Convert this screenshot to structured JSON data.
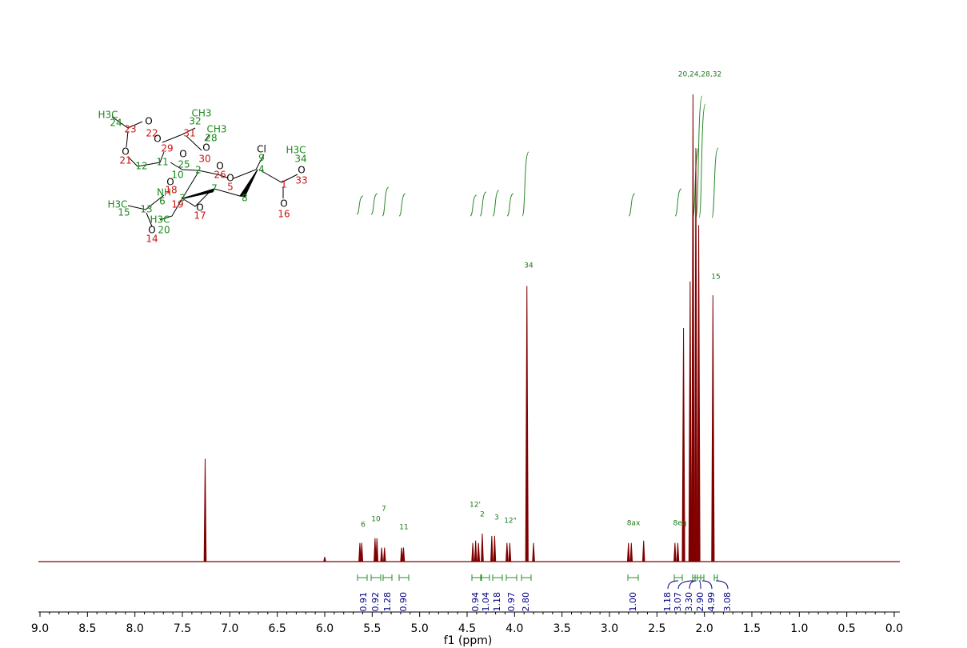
{
  "chart_data": {
    "type": "nmr",
    "x_label": "f1 (ppm)",
    "xlim": [
      9.0,
      0.0
    ],
    "xticks": [
      {
        "value": 9.0,
        "label": "9.0"
      },
      {
        "value": 8.5,
        "label": "8.5"
      },
      {
        "value": 8.0,
        "label": "8.0"
      },
      {
        "value": 7.5,
        "label": "7.5"
      },
      {
        "value": 7.0,
        "label": "7.0"
      },
      {
        "value": 6.5,
        "label": "6.5"
      },
      {
        "value": 6.0,
        "label": "6.0"
      },
      {
        "value": 5.5,
        "label": "5.5"
      },
      {
        "value": 5.0,
        "label": "5.0"
      },
      {
        "value": 4.5,
        "label": "4.5"
      },
      {
        "value": 4.0,
        "label": "4.0"
      },
      {
        "value": 3.5,
        "label": "3.5"
      },
      {
        "value": 3.0,
        "label": "3.0"
      },
      {
        "value": 2.5,
        "label": "2.5"
      },
      {
        "value": 2.0,
        "label": "2.0"
      },
      {
        "value": 1.5,
        "label": "1.5"
      },
      {
        "value": 1.0,
        "label": "1.0"
      },
      {
        "value": 0.5,
        "label": "0.5"
      },
      {
        "value": 0.0,
        "label": "0.0"
      }
    ],
    "ylim": [
      0,
      100
    ],
    "color": "#800000",
    "peaks": {
      "x": [
        7.26,
        6.0,
        5.63,
        5.61,
        5.47,
        5.45,
        5.4,
        5.37,
        5.19,
        5.17,
        4.44,
        4.41,
        4.38,
        4.34,
        4.24,
        4.21,
        4.08,
        4.05,
        3.87,
        3.8,
        2.8,
        2.77,
        2.64,
        2.31,
        2.28,
        2.22,
        2.15,
        2.12,
        2.09,
        2.06,
        1.91
      ],
      "values": [
        22,
        1,
        4,
        4,
        5,
        5,
        3,
        3,
        3,
        3,
        4,
        4.5,
        4,
        6,
        5.5,
        5.5,
        4,
        4,
        59,
        4,
        4,
        4,
        4.5,
        4,
        4,
        50,
        60,
        100,
        88.5,
        72,
        57
      ]
    },
    "peak_labels": [
      "6",
      "10",
      "7",
      "11",
      "12'",
      "2",
      "3",
      "12\"",
      "34",
      "8ax",
      "8eq",
      "15",
      "20,24,28,32"
    ],
    "integrals": {
      "values": [
        0.91,
        0.92,
        1.28,
        0.9,
        0.94,
        1.04,
        1.18,
        0.97,
        2.8,
        1.0,
        1.18,
        3.07,
        3.3,
        2.9,
        4.99,
        3.08
      ],
      "value_labels": [
        "0.91",
        "0.92",
        "1.28",
        "0.90",
        "0.94",
        "1.04",
        "1.18",
        "0.97",
        "2.80",
        "1.00",
        "1.18",
        "3.07",
        "3.30",
        "2.90",
        "4.99",
        "3.08"
      ]
    },
    "structure_labels": [
      "H3C",
      "24",
      "23",
      "O",
      "22",
      "O",
      "21",
      "12",
      "11",
      "29",
      "O",
      "31",
      "CH3",
      "32",
      "CH3",
      "28",
      "O",
      "30",
      "O",
      "O",
      "25",
      "2",
      "10",
      "26",
      "O",
      "5",
      "Cl",
      "9",
      "4",
      "H3C",
      "34",
      "O",
      "33",
      "1",
      "O",
      "16",
      "8",
      "7",
      "O",
      "NH",
      "18",
      "3",
      "6",
      "19",
      "O",
      "17",
      "H3C",
      "15",
      "13",
      "H3C",
      "20",
      "O",
      "14"
    ]
  }
}
